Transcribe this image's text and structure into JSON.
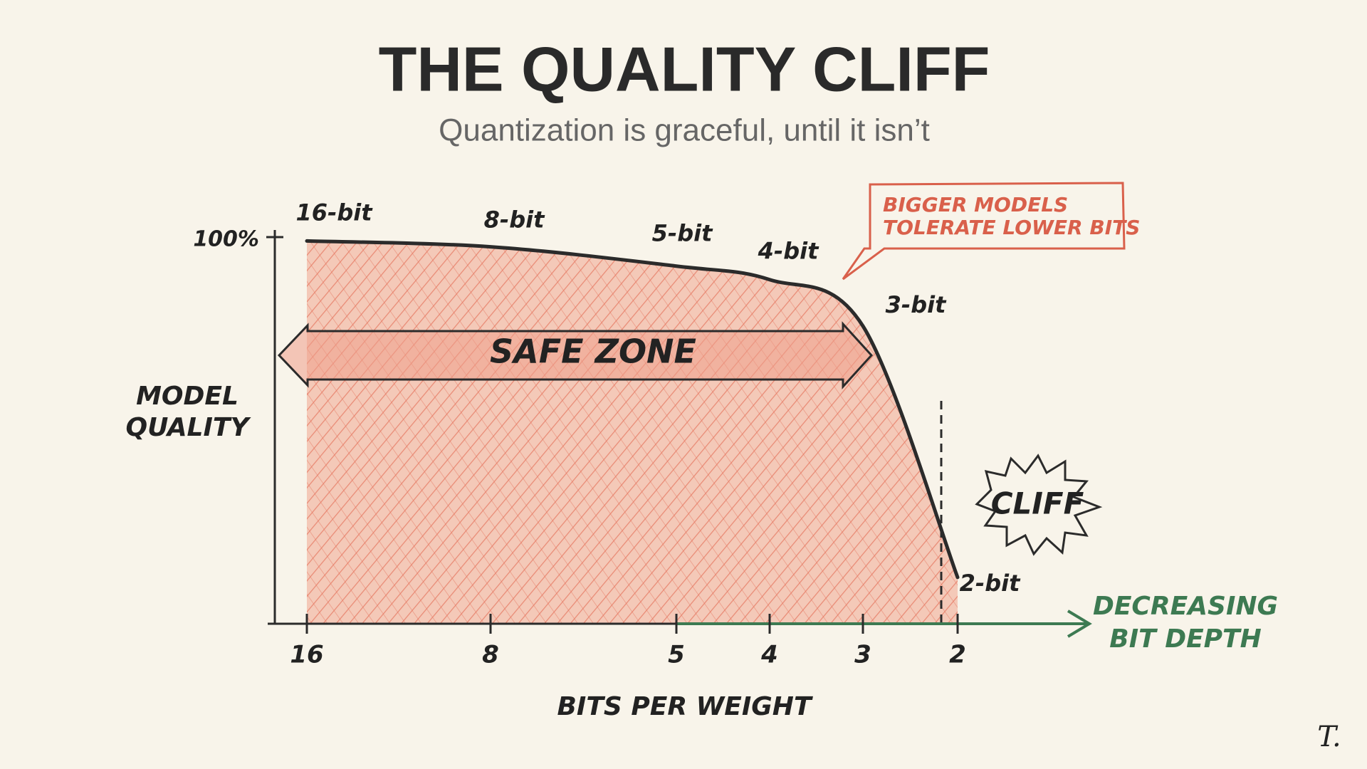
{
  "chart_data": {
    "type": "line",
    "title": "THE QUALITY CLIFF",
    "subtitle": "Quantization is graceful, until it isn’t",
    "categories": [
      "16",
      "8",
      "5",
      "4",
      "3",
      "2"
    ],
    "series": [
      {
        "name": "Model quality",
        "color": "#2b2b2b",
        "values": [
          99,
          97.5,
          92.5,
          89,
          77,
          12
        ]
      }
    ],
    "point_labels": [
      "16-bit",
      "8-bit",
      "5-bit",
      "4-bit",
      "3-bit",
      "2-bit"
    ],
    "ylim": [
      0,
      100
    ],
    "yticks": [
      {
        "value": 100,
        "label": "100%"
      }
    ],
    "xlabel": "BITS PER WEIGHT",
    "ylabel": [
      "MODEL",
      "QUALITY"
    ],
    "arrow_label": [
      "DECREASING",
      "BIT DEPTH"
    ],
    "fill_color": "#e67a64",
    "arrow_color": "#3d7a52",
    "annotations": {
      "callout": [
        "BIGGER MODELS",
        "TOLERATE LOWER BITS"
      ],
      "safe_zone": "SAFE ZONE",
      "cliff": "CLIFF",
      "signature": "T."
    }
  }
}
